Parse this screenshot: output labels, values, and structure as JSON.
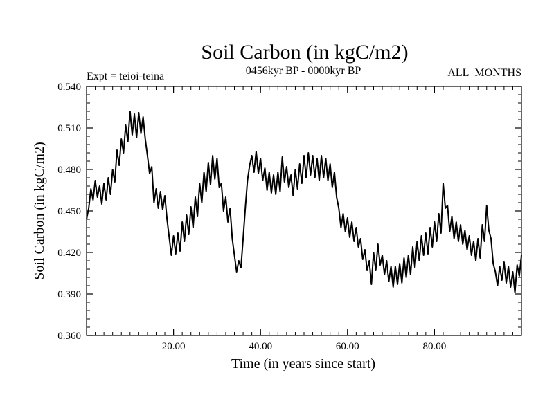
{
  "chart_data": {
    "type": "line",
    "title": "Soil Carbon (in kgC/m2)",
    "subtitle_left": "Expt = teioi-teina",
    "subtitle_center": "0456kyr BP - 0000kyr BP",
    "subtitle_right": "ALL_MONTHS",
    "xlabel": "Time (in years since start)",
    "ylabel": "Soil Carbon (in kgC/m2)",
    "xlim": [
      0,
      100
    ],
    "ylim": [
      0.36,
      0.54
    ],
    "x_ticks": [
      20,
      40,
      60,
      80
    ],
    "x_tick_labels": [
      "20.00",
      "40.00",
      "60.00",
      "80.00"
    ],
    "y_ticks": [
      0.36,
      0.39,
      0.42,
      0.45,
      0.48,
      0.51,
      0.54
    ],
    "y_tick_labels": [
      "0.360",
      "0.390",
      "0.420",
      "0.450",
      "0.480",
      "0.510",
      "0.540"
    ],
    "grid": false,
    "series": [
      {
        "name": "Soil Carbon",
        "color": "#000000",
        "x": [
          0,
          0.5,
          1,
          1.5,
          2,
          2.5,
          3,
          3.5,
          4,
          4.5,
          5,
          5.5,
          6,
          6.5,
          7,
          7.5,
          8,
          8.5,
          9,
          9.5,
          10,
          10.5,
          11,
          11.5,
          12,
          12.5,
          13,
          13.5,
          14,
          14.5,
          15,
          15.5,
          16,
          16.5,
          17,
          17.5,
          18,
          18.5,
          19,
          19.5,
          20,
          20.5,
          21,
          21.5,
          22,
          22.5,
          23,
          23.5,
          24,
          24.5,
          25,
          25.5,
          26,
          26.5,
          27,
          27.5,
          28,
          28.5,
          29,
          29.5,
          30,
          30.5,
          31,
          31.5,
          32,
          32.5,
          33,
          33.5,
          34,
          34.5,
          35,
          35.5,
          36,
          36.5,
          37,
          37.5,
          38,
          38.5,
          39,
          39.5,
          40,
          40.5,
          41,
          41.5,
          42,
          42.5,
          43,
          43.5,
          44,
          44.5,
          45,
          45.5,
          46,
          46.5,
          47,
          47.5,
          48,
          48.5,
          49,
          49.5,
          50,
          50.5,
          51,
          51.5,
          52,
          52.5,
          53,
          53.5,
          54,
          54.5,
          55,
          55.5,
          56,
          56.5,
          57,
          57.5,
          58,
          58.5,
          59,
          59.5,
          60,
          60.5,
          61,
          61.5,
          62,
          62.5,
          63,
          63.5,
          64,
          64.5,
          65,
          65.5,
          66,
          66.5,
          67,
          67.5,
          68,
          68.5,
          69,
          69.5,
          70,
          70.5,
          71,
          71.5,
          72,
          72.5,
          73,
          73.5,
          74,
          74.5,
          75,
          75.5,
          76,
          76.5,
          77,
          77.5,
          78,
          78.5,
          79,
          79.5,
          80,
          80.5,
          81,
          81.5,
          82,
          82.5,
          83,
          83.5,
          84,
          84.5,
          85,
          85.5,
          86,
          86.5,
          87,
          87.5,
          88,
          88.5,
          89,
          89.5,
          90,
          90.5,
          91,
          91.5,
          92,
          92.5,
          93,
          93.5,
          94,
          94.5,
          95,
          95.5,
          96,
          96.5,
          97,
          97.5,
          98,
          98.5,
          99,
          99.5,
          100
        ],
        "y": [
          0.444,
          0.452,
          0.466,
          0.458,
          0.472,
          0.46,
          0.468,
          0.455,
          0.47,
          0.458,
          0.474,
          0.462,
          0.48,
          0.471,
          0.494,
          0.483,
          0.502,
          0.492,
          0.512,
          0.5,
          0.522,
          0.505,
          0.52,
          0.503,
          0.521,
          0.506,
          0.518,
          0.502,
          0.49,
          0.477,
          0.482,
          0.456,
          0.466,
          0.452,
          0.464,
          0.451,
          0.461,
          0.444,
          0.431,
          0.418,
          0.432,
          0.419,
          0.434,
          0.421,
          0.442,
          0.428,
          0.447,
          0.433,
          0.453,
          0.438,
          0.46,
          0.446,
          0.47,
          0.456,
          0.478,
          0.464,
          0.485,
          0.469,
          0.49,
          0.473,
          0.488,
          0.467,
          0.47,
          0.45,
          0.46,
          0.442,
          0.452,
          0.43,
          0.418,
          0.406,
          0.414,
          0.409,
          0.43,
          0.452,
          0.472,
          0.483,
          0.49,
          0.478,
          0.493,
          0.477,
          0.488,
          0.472,
          0.481,
          0.465,
          0.478,
          0.463,
          0.476,
          0.462,
          0.478,
          0.464,
          0.489,
          0.471,
          0.482,
          0.467,
          0.476,
          0.461,
          0.48,
          0.466,
          0.484,
          0.47,
          0.49,
          0.474,
          0.492,
          0.476,
          0.49,
          0.474,
          0.488,
          0.472,
          0.49,
          0.474,
          0.488,
          0.472,
          0.484,
          0.467,
          0.478,
          0.46,
          0.452,
          0.438,
          0.448,
          0.435,
          0.445,
          0.431,
          0.442,
          0.428,
          0.438,
          0.424,
          0.43,
          0.415,
          0.422,
          0.407,
          0.414,
          0.397,
          0.42,
          0.407,
          0.426,
          0.411,
          0.418,
          0.404,
          0.414,
          0.399,
          0.41,
          0.395,
          0.41,
          0.397,
          0.412,
          0.398,
          0.416,
          0.402,
          0.418,
          0.404,
          0.424,
          0.409,
          0.428,
          0.414,
          0.432,
          0.418,
          0.434,
          0.419,
          0.438,
          0.424,
          0.442,
          0.428,
          0.448,
          0.434,
          0.47,
          0.452,
          0.454,
          0.435,
          0.446,
          0.43,
          0.442,
          0.428,
          0.44,
          0.426,
          0.436,
          0.422,
          0.432,
          0.418,
          0.428,
          0.414,
          0.43,
          0.416,
          0.44,
          0.428,
          0.454,
          0.436,
          0.43,
          0.412,
          0.406,
          0.396,
          0.41,
          0.4,
          0.413,
          0.398,
          0.41,
          0.395,
          0.406,
          0.391,
          0.411,
          0.403,
          0.418
        ]
      }
    ]
  }
}
